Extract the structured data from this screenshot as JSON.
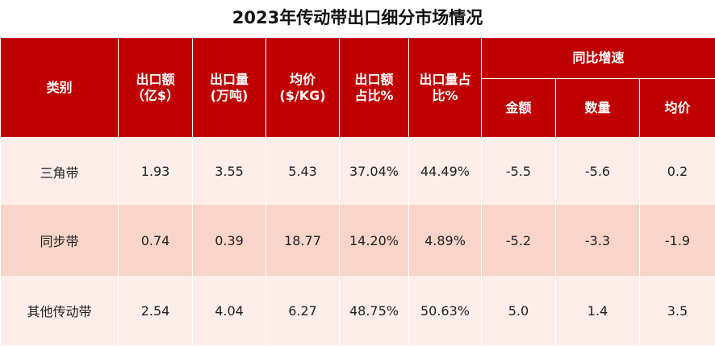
{
  "title": "2023年传动带出口细分市场情况",
  "headers": {
    "category": "类别",
    "export_value": [
      "出口额",
      "（亿$）"
    ],
    "export_volume": [
      "出口量",
      "(万吨)"
    ],
    "avg_price": [
      "均价",
      "($/KG)"
    ],
    "value_share": [
      "出口额",
      "占比%"
    ],
    "volume_share": [
      "出口量占",
      "比%"
    ],
    "yoy_group": "同比增速",
    "yoy_value": "金额",
    "yoy_volume": "数量",
    "yoy_price": "均价"
  },
  "rows": [
    {
      "category": "三角带",
      "export_value": "1.93",
      "export_volume": "3.55",
      "avg_price": "5.43",
      "value_share": "37.04%",
      "volume_share": "44.49%",
      "yoy_value": "-5.5",
      "yoy_volume": "-5.6",
      "yoy_price": "0.2"
    },
    {
      "category": "同步带",
      "export_value": "0.74",
      "export_volume": "0.39",
      "avg_price": "18.77",
      "value_share": "14.20%",
      "volume_share": "4.89%",
      "yoy_value": "-5.2",
      "yoy_volume": "-3.3",
      "yoy_price": "-1.9"
    },
    {
      "category": "其他传动带",
      "export_value": "2.54",
      "export_volume": "4.04",
      "avg_price": "6.27",
      "value_share": "48.75%",
      "volume_share": "50.63%",
      "yoy_value": "5.0",
      "yoy_volume": "1.4",
      "yoy_price": "3.5"
    }
  ],
  "colors": {
    "header_bg": "#c00000",
    "row_light": "#fdeee9",
    "row_dark": "#f8d4c9"
  }
}
